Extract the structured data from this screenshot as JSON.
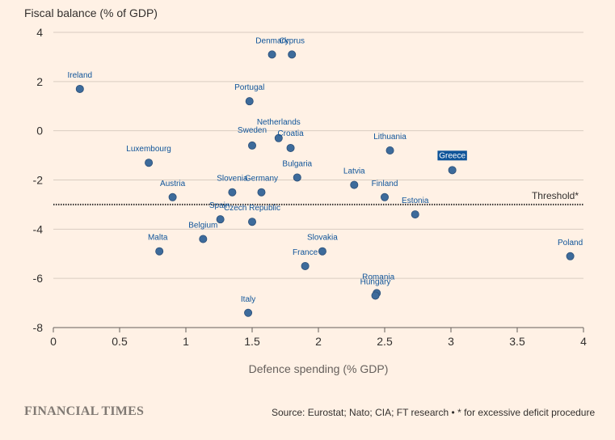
{
  "chart_data": {
    "type": "scatter",
    "title": "",
    "ylabel": "Fiscal balance (% of GDP)",
    "xlabel": "Defence spending (% GDP)",
    "xlim": [
      0,
      4
    ],
    "ylim": [
      -8,
      4
    ],
    "x_ticks": [
      0,
      0.5,
      1,
      1.5,
      2,
      2.5,
      3,
      3.5,
      4
    ],
    "x_tick_labels": [
      "0",
      "0.5",
      "1",
      "1.5",
      "2",
      "2.5",
      "3",
      "3.5",
      "4"
    ],
    "y_ticks": [
      4,
      2,
      0,
      -2,
      -4,
      -6,
      -8
    ],
    "y_tick_labels": [
      "4",
      "2",
      "0",
      "-2",
      "-4",
      "-6",
      "-8"
    ],
    "grid": true,
    "threshold": {
      "y": -3,
      "label": "Threshold*"
    },
    "highlight": "Greece",
    "points": [
      {
        "name": "Denmark",
        "x": 1.65,
        "y": 3.1
      },
      {
        "name": "Cyprus",
        "x": 1.8,
        "y": 3.1
      },
      {
        "name": "Ireland",
        "x": 0.2,
        "y": 1.7
      },
      {
        "name": "Portugal",
        "x": 1.48,
        "y": 1.2
      },
      {
        "name": "Netherlands",
        "x": 1.7,
        "y": -0.3
      },
      {
        "name": "Sweden",
        "x": 1.5,
        "y": -0.6
      },
      {
        "name": "Croatia",
        "x": 1.79,
        "y": -0.7
      },
      {
        "name": "Lithuania",
        "x": 2.54,
        "y": -0.8
      },
      {
        "name": "Luxembourg",
        "x": 0.72,
        "y": -1.3
      },
      {
        "name": "Greece",
        "x": 3.01,
        "y": -1.6
      },
      {
        "name": "Bulgaria",
        "x": 1.84,
        "y": -1.9
      },
      {
        "name": "Latvia",
        "x": 2.27,
        "y": -2.2
      },
      {
        "name": "Slovenia",
        "x": 1.35,
        "y": -2.5
      },
      {
        "name": "Germany",
        "x": 1.57,
        "y": -2.5
      },
      {
        "name": "Austria",
        "x": 0.9,
        "y": -2.7
      },
      {
        "name": "Finland",
        "x": 2.5,
        "y": -2.7
      },
      {
        "name": "Estonia",
        "x": 2.73,
        "y": -3.4
      },
      {
        "name": "Spain",
        "x": 1.26,
        "y": -3.6
      },
      {
        "name": "Czech Republic",
        "x": 1.5,
        "y": -3.7
      },
      {
        "name": "Belgium",
        "x": 1.13,
        "y": -4.4
      },
      {
        "name": "Malta",
        "x": 0.8,
        "y": -4.9
      },
      {
        "name": "Slovakia",
        "x": 2.03,
        "y": -4.9
      },
      {
        "name": "Poland",
        "x": 3.9,
        "y": -5.1
      },
      {
        "name": "France",
        "x": 1.9,
        "y": -5.5
      },
      {
        "name": "Romania",
        "x": 2.44,
        "y": -6.6
      },
      {
        "name": "Hungary",
        "x": 2.43,
        "y": -6.7
      },
      {
        "name": "Italy",
        "x": 1.47,
        "y": -7.4
      }
    ]
  },
  "footer": {
    "source": "Source: Eurostat; Nato; CIA; FT research • * for excessive deficit procedure",
    "brand": "FINANCIAL TIMES"
  },
  "colors": {
    "background": "#fff1e5",
    "marker": "#3d6b9b",
    "marker_stroke": "#2c4f78",
    "label": "#0f5499",
    "highlight_bg": "#0f5499",
    "highlight_text": "#ffffff",
    "grid": "#d9ccc1",
    "axis": "#66605c",
    "threshold": "#33302e"
  }
}
